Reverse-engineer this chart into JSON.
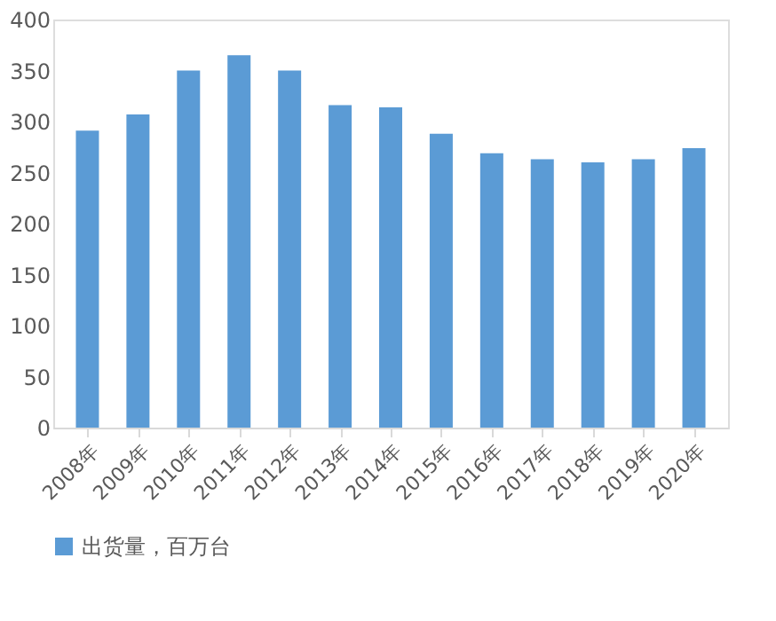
{
  "chart_data": {
    "type": "bar",
    "categories": [
      "2008年",
      "2009年",
      "2010年",
      "2011年",
      "2012年",
      "2013年",
      "2014年",
      "2015年",
      "2016年",
      "2017年",
      "2018年",
      "2019年",
      "2020年"
    ],
    "series": [
      {
        "name": "出货量，百万台",
        "color": "#5b9bd5",
        "values": [
          291,
          307,
          350,
          365,
          350,
          316,
          314,
          288,
          269,
          263,
          260,
          263,
          274
        ]
      }
    ],
    "ylim": [
      0,
      400
    ],
    "yticks": [
      0,
      50,
      100,
      150,
      200,
      250,
      300,
      350,
      400
    ],
    "grid": false,
    "legend": "bottom"
  }
}
